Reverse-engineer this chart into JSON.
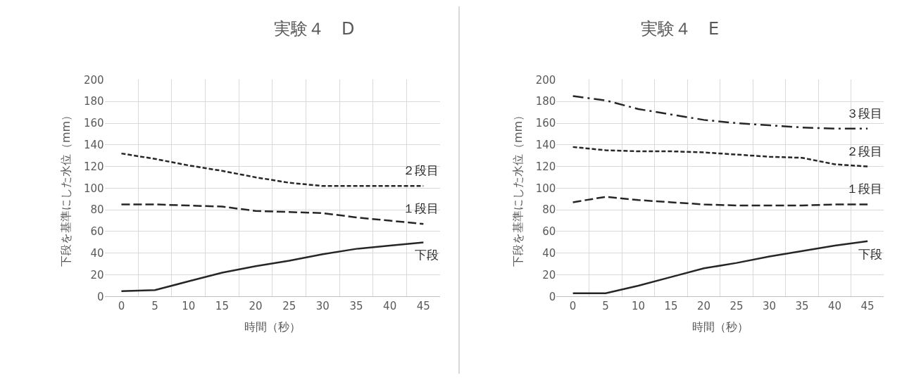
{
  "chart_data": [
    {
      "type": "line",
      "title": "実験４　D",
      "xlabel": "時間（秒）",
      "ylabel": "下段を基準にした水位（mm）",
      "categories": [
        "0",
        "5",
        "10",
        "15",
        "20",
        "25",
        "30",
        "35",
        "40",
        "45"
      ],
      "ylim": [
        0,
        200
      ],
      "yticks": [
        0,
        20,
        40,
        60,
        80,
        100,
        120,
        140,
        160,
        180,
        200
      ],
      "grid": true,
      "marker": "none",
      "series": [
        {
          "name": "下段",
          "color": "#262626",
          "line_style": "solid",
          "values": [
            5,
            6,
            14,
            22,
            28,
            33,
            39,
            44,
            47,
            50
          ]
        },
        {
          "name": "１段目",
          "color": "#262626",
          "line_style": "dashed",
          "values": [
            85,
            85,
            84,
            83,
            79,
            78,
            77,
            73,
            70,
            67
          ]
        },
        {
          "name": "２段目",
          "color": "#262626",
          "line_style": "dotted",
          "values": [
            132,
            127,
            121,
            116,
            110,
            105,
            102,
            102,
            102,
            102
          ]
        }
      ]
    },
    {
      "type": "line",
      "title": "実験４　E",
      "xlabel": "時間（秒）",
      "ylabel": "下段を基準にした水位（mm）",
      "categories": [
        "0",
        "5",
        "10",
        "15",
        "20",
        "25",
        "30",
        "35",
        "40",
        "45"
      ],
      "ylim": [
        0,
        200
      ],
      "yticks": [
        0,
        20,
        40,
        60,
        80,
        100,
        120,
        140,
        160,
        180,
        200
      ],
      "grid": true,
      "marker": "none",
      "series": [
        {
          "name": "下段",
          "color": "#262626",
          "line_style": "solid",
          "values": [
            3,
            3,
            10,
            18,
            26,
            31,
            37,
            42,
            47,
            51
          ]
        },
        {
          "name": "１段目",
          "color": "#262626",
          "line_style": "dashed",
          "values": [
            87,
            92,
            89,
            87,
            85,
            84,
            84,
            84,
            85,
            85
          ]
        },
        {
          "name": "２段目",
          "color": "#262626",
          "line_style": "dotted",
          "values": [
            138,
            135,
            134,
            134,
            133,
            131,
            129,
            128,
            122,
            120
          ]
        },
        {
          "name": "３段目",
          "color": "#262626",
          "line_style": "dashdot",
          "values": [
            185,
            181,
            173,
            168,
            163,
            160,
            158,
            156,
            155,
            155
          ]
        }
      ]
    }
  ]
}
